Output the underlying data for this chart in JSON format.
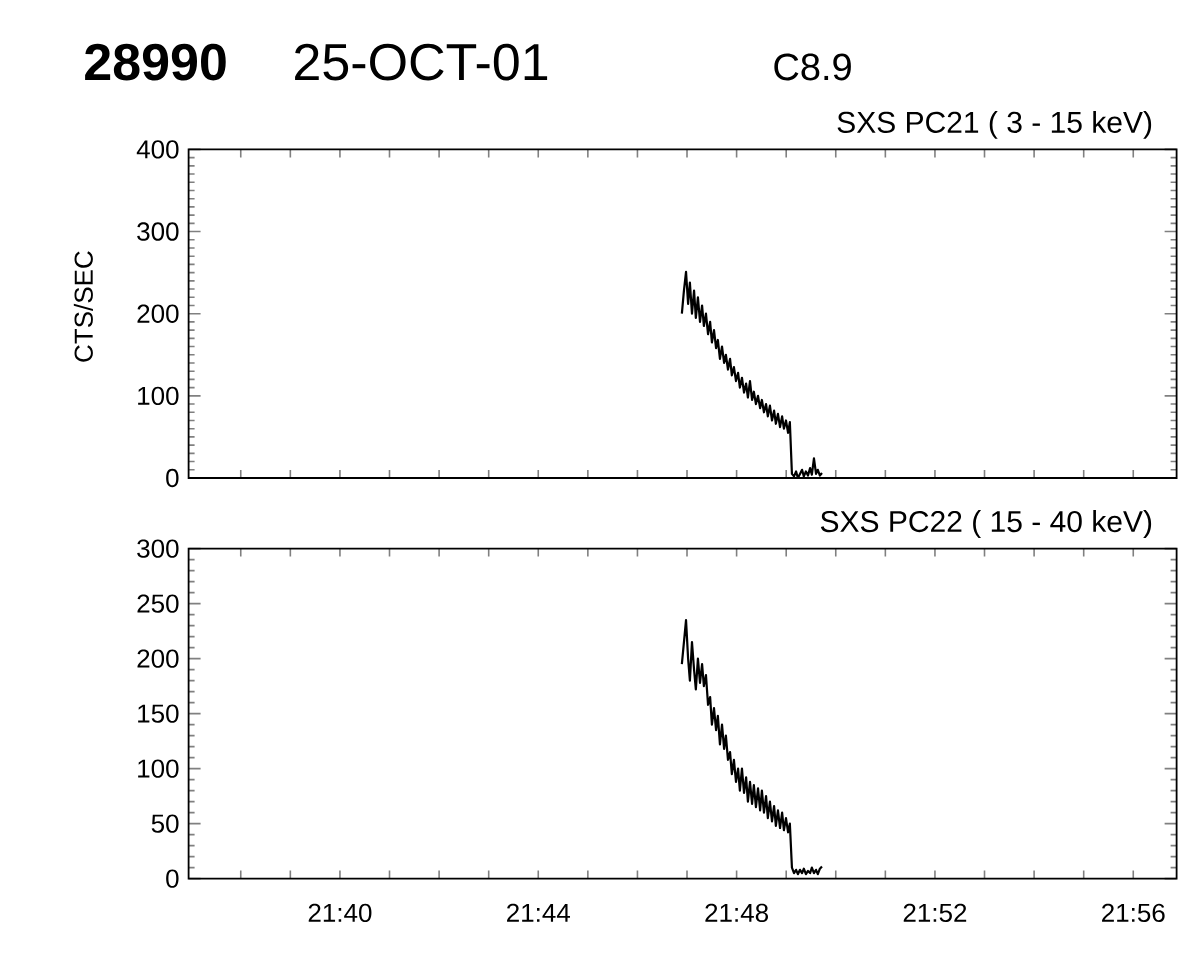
{
  "chart_data": [
    {
      "type": "line",
      "title": "SXS PC21 ( 3 - 15 keV)",
      "ylabel": "CTS/SEC",
      "annotations": [
        "28990",
        "25-OCT-01",
        "C8.9"
      ],
      "color": "#000000",
      "x": [
        21.7816,
        21.7823,
        21.783,
        21.7837,
        21.7843,
        21.785,
        21.7857,
        21.7863,
        21.787,
        21.7877,
        21.7884,
        21.789,
        21.7897,
        21.7904,
        21.7911,
        21.7917,
        21.7924,
        21.7931,
        21.7937,
        21.7944,
        21.7951,
        21.7958,
        21.7964,
        21.7971,
        21.7978,
        21.7984,
        21.7991,
        21.7998,
        21.8005,
        21.8011,
        21.8018,
        21.8025,
        21.8032,
        21.8038,
        21.8045,
        21.8052,
        21.8058,
        21.8065,
        21.8072,
        21.8079,
        21.8085,
        21.8092,
        21.8099,
        21.8105,
        21.8112,
        21.8119,
        21.8126,
        21.8132,
        21.8139,
        21.8146,
        21.8153,
        21.8159,
        21.8166,
        21.8173,
        21.8179,
        21.8186,
        21.8193,
        21.82,
        21.8206,
        21.8213,
        21.822,
        21.8226,
        21.8233,
        21.824,
        21.8247,
        21.8253,
        21.826,
        21.8267,
        21.8273,
        21.828,
        21.8287
      ],
      "values": [
        200,
        228,
        251,
        212,
        238,
        200,
        228,
        195,
        220,
        190,
        210,
        185,
        200,
        175,
        190,
        165,
        180,
        158,
        168,
        145,
        160,
        140,
        150,
        132,
        145,
        125,
        135,
        118,
        128,
        110,
        122,
        104,
        115,
        98,
        118,
        95,
        105,
        90,
        100,
        85,
        95,
        80,
        90,
        75,
        88,
        70,
        82,
        66,
        78,
        62,
        75,
        60,
        70,
        55,
        68,
        5,
        2,
        8,
        0,
        5,
        10,
        2,
        8,
        3,
        12,
        4,
        24,
        5,
        10,
        3,
        6
      ],
      "xlim": [
        21.6158,
        21.9479
      ],
      "ylim": [
        0,
        400
      ],
      "xticks": [
        {
          "value": 21.63333,
          "label": null
        },
        {
          "value": 21.65,
          "label": null
        },
        {
          "value": 21.66667,
          "label": null
        },
        {
          "value": 21.68333,
          "label": null
        },
        {
          "value": 21.7,
          "label": null
        },
        {
          "value": 21.71667,
          "label": null
        },
        {
          "value": 21.73333,
          "label": null
        },
        {
          "value": 21.75,
          "label": null
        },
        {
          "value": 21.76667,
          "label": null
        },
        {
          "value": 21.78333,
          "label": null
        },
        {
          "value": 21.8,
          "label": null
        },
        {
          "value": 21.81667,
          "label": null
        },
        {
          "value": 21.83333,
          "label": null
        },
        {
          "value": 21.85,
          "label": null
        },
        {
          "value": 21.86667,
          "label": null
        },
        {
          "value": 21.88333,
          "label": null
        },
        {
          "value": 21.9,
          "label": null
        },
        {
          "value": 21.91667,
          "label": null
        },
        {
          "value": 21.93333,
          "label": null
        }
      ],
      "yticks": [
        0,
        100,
        200,
        300,
        400
      ],
      "tick_labels": "y"
    },
    {
      "type": "line",
      "title": "SXS PC22 ( 15 - 40 keV)",
      "color": "#000000",
      "x": [
        21.7816,
        21.7823,
        21.783,
        21.7837,
        21.7843,
        21.785,
        21.7857,
        21.7863,
        21.787,
        21.7877,
        21.7884,
        21.789,
        21.7897,
        21.7904,
        21.7911,
        21.7917,
        21.7924,
        21.7931,
        21.7937,
        21.7944,
        21.7951,
        21.7958,
        21.7964,
        21.7971,
        21.7978,
        21.7984,
        21.7991,
        21.7998,
        21.8005,
        21.8011,
        21.8018,
        21.8025,
        21.8032,
        21.8038,
        21.8045,
        21.8052,
        21.8058,
        21.8065,
        21.8072,
        21.8079,
        21.8085,
        21.8092,
        21.8099,
        21.8105,
        21.8112,
        21.8119,
        21.8126,
        21.8132,
        21.8139,
        21.8146,
        21.8153,
        21.8159,
        21.8166,
        21.8173,
        21.8179,
        21.8186,
        21.8193,
        21.82,
        21.8206,
        21.8213,
        21.822,
        21.8226,
        21.8233,
        21.824,
        21.8247,
        21.8253,
        21.826,
        21.8267,
        21.8273,
        21.828,
        21.8287
      ],
      "values": [
        195,
        215,
        235,
        200,
        180,
        215,
        190,
        172,
        200,
        178,
        195,
        175,
        185,
        158,
        165,
        140,
        155,
        135,
        148,
        122,
        140,
        118,
        130,
        108,
        115,
        95,
        108,
        88,
        100,
        80,
        100,
        78,
        92,
        70,
        88,
        68,
        85,
        65,
        82,
        62,
        80,
        60,
        75,
        55,
        70,
        52,
        66,
        48,
        62,
        46,
        60,
        44,
        55,
        42,
        50,
        10,
        5,
        8,
        4,
        8,
        5,
        9,
        4,
        7,
        5,
        10,
        5,
        8,
        4,
        9,
        11
      ],
      "xlim": [
        21.6158,
        21.9479
      ],
      "ylim": [
        0,
        300
      ],
      "xticks": [
        {
          "value": 21.63333,
          "label": null
        },
        {
          "value": 21.65,
          "label": null
        },
        {
          "value": 21.66667,
          "label": "21:40"
        },
        {
          "value": 21.68333,
          "label": null
        },
        {
          "value": 21.7,
          "label": null
        },
        {
          "value": 21.71667,
          "label": null
        },
        {
          "value": 21.73333,
          "label": "21:44"
        },
        {
          "value": 21.75,
          "label": null
        },
        {
          "value": 21.76667,
          "label": null
        },
        {
          "value": 21.78333,
          "label": null
        },
        {
          "value": 21.8,
          "label": "21:48"
        },
        {
          "value": 21.81667,
          "label": null
        },
        {
          "value": 21.83333,
          "label": null
        },
        {
          "value": 21.85,
          "label": null
        },
        {
          "value": 21.86667,
          "label": "21:52"
        },
        {
          "value": 21.88333,
          "label": null
        },
        {
          "value": 21.9,
          "label": null
        },
        {
          "value": 21.91667,
          "label": null
        },
        {
          "value": 21.93333,
          "label": "21:56"
        }
      ],
      "yticks": [
        0,
        50,
        100,
        150,
        200,
        250,
        300
      ]
    }
  ]
}
